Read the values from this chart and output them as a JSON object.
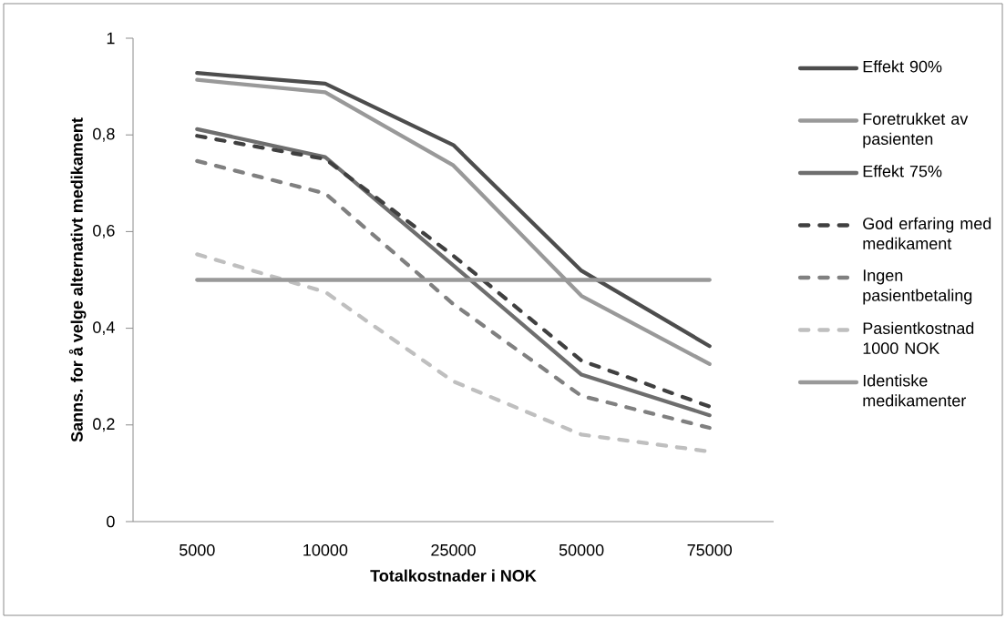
{
  "chart_data": {
    "type": "line",
    "xlabel": "Totalkostnader i NOK",
    "ylabel": "Sanns. for å velge alternativt medikament",
    "categories": [
      "5000",
      "10000",
      "25000",
      "50000",
      "75000"
    ],
    "series": [
      {
        "name": "Effekt 90%",
        "color": "#4d4d4d",
        "line_style": "solid",
        "values": [
          0.928,
          0.906,
          0.779,
          0.519,
          0.363
        ]
      },
      {
        "name": "Foretrukket av pasienten",
        "color": "#999999",
        "line_style": "solid",
        "values": [
          0.914,
          0.888,
          0.737,
          0.467,
          0.326
        ]
      },
      {
        "name": "Effekt 75%",
        "color": "#6e6e6e",
        "line_style": "solid",
        "values": [
          0.812,
          0.754,
          0.53,
          0.304,
          0.22
        ]
      },
      {
        "name": "God erfaring med medikament",
        "color": "#404040",
        "line_style": "dashed",
        "values": [
          0.798,
          0.75,
          0.55,
          0.333,
          0.238
        ]
      },
      {
        "name": "Ingen pasientbetaling",
        "color": "#808080",
        "line_style": "dashed",
        "values": [
          0.746,
          0.679,
          0.45,
          0.26,
          0.194
        ]
      },
      {
        "name": "Pasientkostnad 1000 NOK",
        "color": "#bfbfbf",
        "line_style": "dashed",
        "values": [
          0.553,
          0.475,
          0.29,
          0.18,
          0.145
        ]
      },
      {
        "name": "Identiske medikamenter",
        "color": "#999999",
        "line_style": "solid",
        "values": [
          0.5,
          0.5,
          0.5,
          0.5,
          0.5
        ]
      }
    ],
    "ylim": [
      0,
      1
    ],
    "yticks": [
      0,
      {
        "value": 0.2,
        "label": "0,2"
      },
      {
        "value": 0.4,
        "label": "0,4"
      },
      {
        "value": 0.6,
        "label": "0,6"
      },
      {
        "value": 0.8,
        "label": "0,8"
      },
      1
    ],
    "grid": false,
    "legend": "right",
    "marker": "none"
  }
}
